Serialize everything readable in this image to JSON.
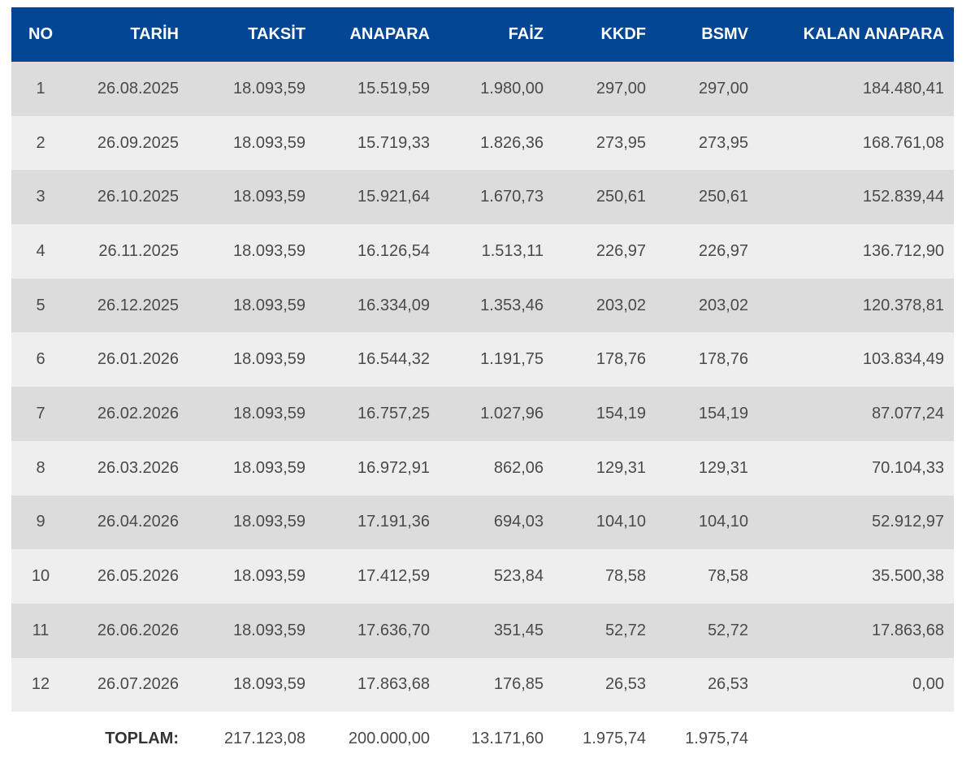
{
  "colors": {
    "header_bg": "#034693",
    "header_text": "#ffffff",
    "row_odd": "#dcdcdc",
    "row_even": "#eeeeee",
    "cell_text": "#4a4a4a"
  },
  "columns": [
    "NO",
    "TARİH",
    "TAKSİT",
    "ANAPARA",
    "FAİZ",
    "KKDF",
    "BSMV",
    "KALAN ANAPARA"
  ],
  "rows": [
    [
      "1",
      "26.08.2025",
      "18.093,59",
      "15.519,59",
      "1.980,00",
      "297,00",
      "297,00",
      "184.480,41"
    ],
    [
      "2",
      "26.09.2025",
      "18.093,59",
      "15.719,33",
      "1.826,36",
      "273,95",
      "273,95",
      "168.761,08"
    ],
    [
      "3",
      "26.10.2025",
      "18.093,59",
      "15.921,64",
      "1.670,73",
      "250,61",
      "250,61",
      "152.839,44"
    ],
    [
      "4",
      "26.11.2025",
      "18.093,59",
      "16.126,54",
      "1.513,11",
      "226,97",
      "226,97",
      "136.712,90"
    ],
    [
      "5",
      "26.12.2025",
      "18.093,59",
      "16.334,09",
      "1.353,46",
      "203,02",
      "203,02",
      "120.378,81"
    ],
    [
      "6",
      "26.01.2026",
      "18.093,59",
      "16.544,32",
      "1.191,75",
      "178,76",
      "178,76",
      "103.834,49"
    ],
    [
      "7",
      "26.02.2026",
      "18.093,59",
      "16.757,25",
      "1.027,96",
      "154,19",
      "154,19",
      "87.077,24"
    ],
    [
      "8",
      "26.03.2026",
      "18.093,59",
      "16.972,91",
      "862,06",
      "129,31",
      "129,31",
      "70.104,33"
    ],
    [
      "9",
      "26.04.2026",
      "18.093,59",
      "17.191,36",
      "694,03",
      "104,10",
      "104,10",
      "52.912,97"
    ],
    [
      "10",
      "26.05.2026",
      "18.093,59",
      "17.412,59",
      "523,84",
      "78,58",
      "78,58",
      "35.500,38"
    ],
    [
      "11",
      "26.06.2026",
      "18.093,59",
      "17.636,70",
      "351,45",
      "52,72",
      "52,72",
      "17.863,68"
    ],
    [
      "12",
      "26.07.2026",
      "18.093,59",
      "17.863,68",
      "176,85",
      "26,53",
      "26,53",
      "0,00"
    ]
  ],
  "totals": {
    "label": "TOPLAM:",
    "taksit": "217.123,08",
    "anapara": "200.000,00",
    "faiz": "13.171,60",
    "kkdf": "1.975,74",
    "bsmv": "1.975,74"
  }
}
